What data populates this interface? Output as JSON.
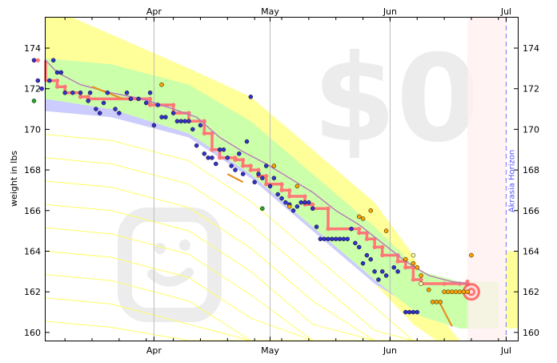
{
  "chart_data": {
    "type": "scatter",
    "ylabel": "weight in lbs",
    "ylim": [
      159.6,
      175.5
    ],
    "y_ticks": [
      160,
      162,
      164,
      166,
      168,
      170,
      172,
      174
    ],
    "x_ticks": [
      {
        "label": "Apr",
        "day": 31
      },
      {
        "label": "May",
        "day": 61
      },
      {
        "label": "Jun",
        "day": 92
      },
      {
        "label": "Jul",
        "day": 122
      }
    ],
    "horizon_label": "Akrasia Horizon",
    "horizon_day": 122,
    "watermark_text": "$0",
    "watermark_icon": "smiley-face-icon",
    "grid": "vertical month lines",
    "colors": {
      "blue_dot": "#3333cc",
      "green_dot": "#22aa22",
      "orange_dot": "#ffa500",
      "pink_line": "#ff7777",
      "purple_line": "#bb77bb",
      "yellow_band": "#ffff99",
      "green_band": "#ccffaa",
      "blue_band": "#ccccff",
      "horizon_line": "#8888ff",
      "target": "#ff4444"
    },
    "road_upper": [
      [
        0,
        175.5
      ],
      [
        10,
        175.5
      ],
      [
        40,
        173.0
      ],
      [
        56,
        171.6
      ],
      [
        72,
        169.0
      ],
      [
        88,
        166.4
      ],
      [
        98,
        163.8
      ],
      [
        104,
        161.0
      ],
      [
        110,
        159.6
      ]
    ],
    "road_lower": [
      [
        0,
        170.9
      ],
      [
        20,
        170.6
      ],
      [
        40,
        169.6
      ],
      [
        56,
        167.6
      ],
      [
        72,
        165.0
      ],
      [
        88,
        162.4
      ],
      [
        98,
        160.4
      ],
      [
        104,
        159.6
      ]
    ],
    "green_upper": [
      [
        0,
        173.5
      ],
      [
        20,
        173.2
      ],
      [
        40,
        172.2
      ],
      [
        56,
        170.4
      ],
      [
        72,
        167.8
      ],
      [
        88,
        165.2
      ],
      [
        100,
        163.0
      ],
      [
        110,
        162.5
      ],
      [
        120,
        162.5
      ]
    ],
    "green_lower": [
      [
        0,
        171.5
      ],
      [
        20,
        171.0
      ],
      [
        40,
        169.8
      ],
      [
        56,
        167.8
      ],
      [
        72,
        165.2
      ],
      [
        88,
        162.6
      ],
      [
        100,
        160.8
      ],
      [
        110,
        160.2
      ],
      [
        120,
        160.2
      ]
    ],
    "blue_lower": [
      [
        0,
        170.9
      ],
      [
        20,
        170.6
      ],
      [
        40,
        169.6
      ],
      [
        56,
        167.6
      ],
      [
        72,
        165.0
      ],
      [
        88,
        162.4
      ],
      [
        100,
        161.0
      ],
      [
        110,
        160.4
      ]
    ],
    "pink_steps": [
      [
        0,
        173.4
      ],
      [
        1,
        172.4
      ],
      [
        6,
        172.1
      ],
      [
        8,
        171.8
      ],
      [
        12,
        171.6
      ],
      [
        14,
        171.5
      ],
      [
        30,
        171.2
      ],
      [
        36,
        170.8
      ],
      [
        40,
        170.4
      ],
      [
        44,
        169.8
      ],
      [
        46,
        169.0
      ],
      [
        48,
        168.6
      ],
      [
        52,
        168.5
      ],
      [
        54,
        168.2
      ],
      [
        56,
        168.0
      ],
      [
        58,
        167.7
      ],
      [
        60,
        167.3
      ],
      [
        64,
        167.0
      ],
      [
        66,
        166.7
      ],
      [
        70,
        166.3
      ],
      [
        72,
        166.1
      ],
      [
        76,
        165.1
      ],
      [
        82,
        165.1
      ],
      [
        84,
        164.9
      ],
      [
        86,
        164.6
      ],
      [
        88,
        164.2
      ],
      [
        90,
        163.8
      ],
      [
        94,
        163.5
      ],
      [
        96,
        163.2
      ],
      [
        98,
        162.6
      ],
      [
        100,
        162.4
      ],
      [
        106,
        162.4
      ],
      [
        110,
        162.4
      ],
      [
        112,
        162.5
      ]
    ],
    "purple_line": [
      [
        0,
        173.4
      ],
      [
        6,
        172.8
      ],
      [
        12,
        172.2
      ],
      [
        20,
        171.8
      ],
      [
        28,
        171.5
      ],
      [
        36,
        171.0
      ],
      [
        42,
        170.6
      ],
      [
        48,
        169.6
      ],
      [
        54,
        168.9
      ],
      [
        60,
        168.3
      ],
      [
        66,
        167.6
      ],
      [
        72,
        166.9
      ],
      [
        78,
        166.0
      ],
      [
        84,
        165.3
      ],
      [
        90,
        164.4
      ],
      [
        96,
        163.5
      ],
      [
        102,
        162.8
      ],
      [
        108,
        162.5
      ],
      [
        112,
        162.4
      ]
    ],
    "blue_points": [
      [
        0,
        173.4
      ],
      [
        1,
        172.4
      ],
      [
        2,
        172.0
      ],
      [
        4,
        172.4
      ],
      [
        5,
        173.4
      ],
      [
        6,
        172.8
      ],
      [
        7,
        172.8
      ],
      [
        8,
        171.8
      ],
      [
        10,
        171.8
      ],
      [
        12,
        171.8
      ],
      [
        14,
        171.4
      ],
      [
        14.5,
        171.8
      ],
      [
        16,
        171.0
      ],
      [
        17,
        170.8
      ],
      [
        18,
        171.3
      ],
      [
        19,
        171.8
      ],
      [
        21,
        171.0
      ],
      [
        22,
        170.8
      ],
      [
        24,
        171.8
      ],
      [
        25,
        171.5
      ],
      [
        27,
        171.5
      ],
      [
        29,
        171.3
      ],
      [
        30,
        171.8
      ],
      [
        31,
        170.2
      ],
      [
        32,
        171.2
      ],
      [
        33,
        170.6
      ],
      [
        34,
        170.6
      ],
      [
        36,
        170.8
      ],
      [
        37,
        170.4
      ],
      [
        38,
        170.4
      ],
      [
        39,
        170.4
      ],
      [
        40,
        170.4
      ],
      [
        41,
        170.0
      ],
      [
        42,
        169.2
      ],
      [
        43,
        170.2
      ],
      [
        44,
        168.8
      ],
      [
        45,
        168.6
      ],
      [
        46,
        168.6
      ],
      [
        47,
        168.3
      ],
      [
        48,
        169.0
      ],
      [
        49,
        169.0
      ],
      [
        50,
        168.6
      ],
      [
        51,
        168.2
      ],
      [
        52,
        168.0
      ],
      [
        53,
        168.8
      ],
      [
        54,
        167.8
      ],
      [
        55,
        169.4
      ],
      [
        56,
        171.6
      ],
      [
        57,
        167.4
      ],
      [
        58,
        167.8
      ],
      [
        59,
        167.6
      ],
      [
        60,
        168.2
      ],
      [
        61,
        167.2
      ],
      [
        62,
        167.6
      ],
      [
        63,
        166.8
      ],
      [
        64,
        166.6
      ],
      [
        65,
        166.4
      ],
      [
        66,
        166.3
      ],
      [
        67,
        166.0
      ],
      [
        68,
        166.2
      ],
      [
        69,
        166.4
      ],
      [
        70,
        166.4
      ],
      [
        71,
        166.4
      ],
      [
        72,
        166.1
      ],
      [
        73,
        165.2
      ],
      [
        74,
        164.6
      ],
      [
        75,
        164.6
      ],
      [
        76,
        164.6
      ],
      [
        77,
        164.6
      ],
      [
        78,
        164.6
      ],
      [
        79,
        164.6
      ],
      [
        80,
        164.6
      ],
      [
        81,
        164.6
      ],
      [
        82,
        165.1
      ],
      [
        83,
        164.4
      ],
      [
        84,
        164.2
      ],
      [
        85,
        163.4
      ],
      [
        86,
        163.8
      ],
      [
        87,
        163.6
      ],
      [
        88,
        163.0
      ],
      [
        89,
        162.6
      ],
      [
        90,
        163.0
      ],
      [
        91,
        162.8
      ],
      [
        93,
        163.2
      ],
      [
        94,
        163.0
      ],
      [
        96,
        161.0
      ],
      [
        97,
        161.0
      ],
      [
        98,
        161.0
      ],
      [
        99,
        161.0
      ]
    ],
    "green_points": [
      [
        0,
        171.4
      ],
      [
        59,
        166.1
      ]
    ],
    "orange_points": [
      [
        33,
        172.2
      ],
      [
        62,
        168.2
      ],
      [
        68,
        167.2
      ],
      [
        66,
        166.2
      ],
      [
        84,
        165.7
      ],
      [
        85,
        165.6
      ],
      [
        87,
        166.0
      ],
      [
        91,
        165.0
      ],
      [
        96,
        163.6
      ],
      [
        98,
        163.4
      ],
      [
        99,
        163.2
      ],
      [
        100,
        162.8
      ],
      [
        102,
        162.1
      ],
      [
        103,
        161.5
      ],
      [
        104,
        161.5
      ],
      [
        105,
        161.5
      ],
      [
        106,
        162.0
      ],
      [
        107,
        162.0
      ],
      [
        108,
        162.0
      ],
      [
        109,
        162.0
      ],
      [
        110,
        162.0
      ],
      [
        111,
        162.0
      ],
      [
        112,
        162.0
      ],
      [
        113,
        163.8
      ]
    ],
    "light_points": [
      [
        98,
        163.8
      ],
      [
        100,
        162.4
      ]
    ],
    "orange_segments": [
      [
        [
          15,
          172.1
        ],
        [
          23,
          171.5
        ]
      ],
      [
        [
          50,
          167.8
        ],
        [
          54,
          167.4
        ]
      ],
      [
        [
          105,
          161.4
        ],
        [
          108,
          160.3
        ]
      ]
    ],
    "target": [
      113,
      162.0
    ]
  }
}
